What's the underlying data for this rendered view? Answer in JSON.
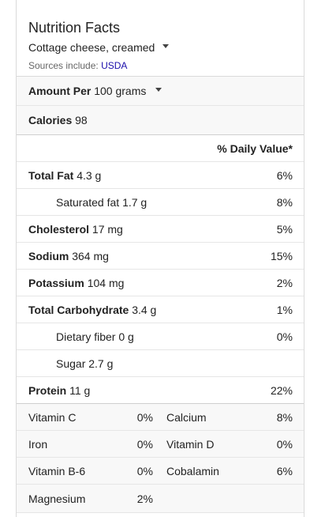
{
  "header": {
    "title": "Nutrition Facts",
    "food": "Cottage cheese, creamed",
    "sources_prefix": "Sources include: ",
    "sources_link": "USDA",
    "caret_icon": "caret-down-icon"
  },
  "amount": {
    "label": "Amount Per",
    "value": "100 grams"
  },
  "calories": {
    "label": "Calories",
    "value": "98"
  },
  "daily_value_header": "% Daily Value*",
  "nutrients": [
    {
      "label": "Total Fat",
      "amount": "4.3 g",
      "pct": "6%"
    },
    {
      "label": "Saturated fat",
      "amount": "1.7 g",
      "pct": "8%"
    },
    {
      "label": "Cholesterol",
      "amount": "17 mg",
      "pct": "5%"
    },
    {
      "label": "Sodium",
      "amount": "364 mg",
      "pct": "15%"
    },
    {
      "label": "Potassium",
      "amount": "104 mg",
      "pct": "2%"
    },
    {
      "label": "Total Carbohydrate",
      "amount": "3.4 g",
      "pct": "1%"
    },
    {
      "label": "Dietary fiber",
      "amount": "0 g",
      "pct": "0%"
    },
    {
      "label": "Sugar",
      "amount": "2.7 g",
      "pct": ""
    },
    {
      "label": "Protein",
      "amount": "11 g",
      "pct": "22%"
    }
  ],
  "vitamins": [
    {
      "left_name": "Vitamin C",
      "left_pct": "0%",
      "right_name": "Calcium",
      "right_pct": "8%"
    },
    {
      "left_name": "Iron",
      "left_pct": "0%",
      "right_name": "Vitamin D",
      "right_pct": "0%"
    },
    {
      "left_name": "Vitamin B-6",
      "left_pct": "0%",
      "right_name": "Cobalamin",
      "right_pct": "6%"
    },
    {
      "left_name": "Magnesium",
      "left_pct": "2%",
      "right_name": "",
      "right_pct": ""
    }
  ]
}
